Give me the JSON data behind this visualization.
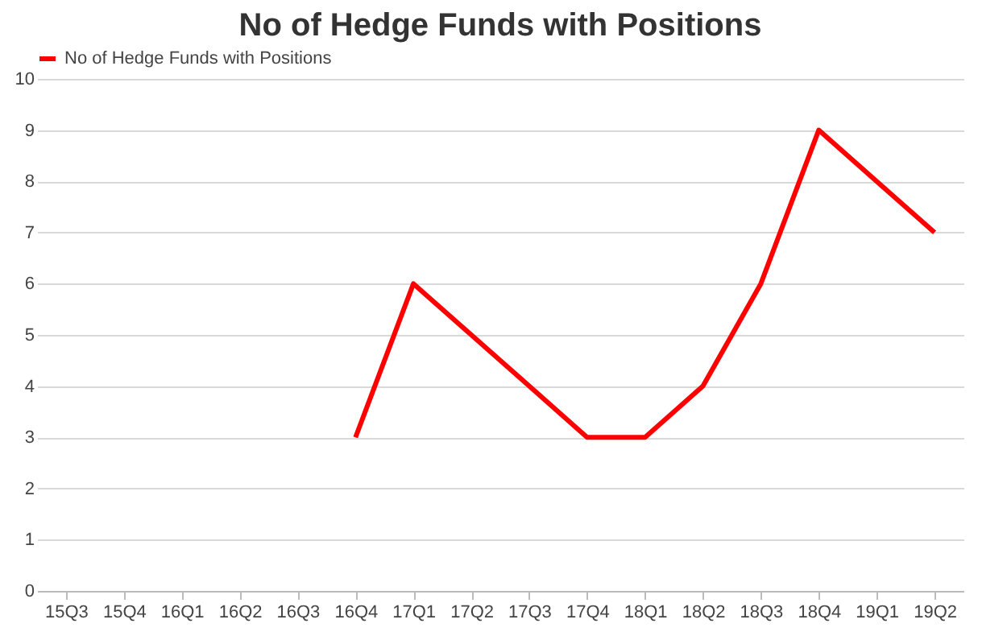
{
  "chart_data": {
    "type": "line",
    "title": "No of Hedge Funds with Positions",
    "categories": [
      "15Q3",
      "15Q4",
      "16Q1",
      "16Q2",
      "16Q3",
      "16Q4",
      "17Q1",
      "17Q2",
      "17Q3",
      "17Q4",
      "18Q1",
      "18Q2",
      "18Q3",
      "18Q4",
      "19Q1",
      "19Q2"
    ],
    "series": [
      {
        "name": "No of Hedge Funds with Positions",
        "color": "#ff0000",
        "values": [
          null,
          null,
          null,
          null,
          null,
          3,
          6,
          5,
          4,
          3,
          3,
          4,
          6,
          9,
          8,
          7
        ]
      }
    ],
    "ylim": [
      0,
      10
    ],
    "yticks": [
      0,
      1,
      2,
      3,
      4,
      5,
      6,
      7,
      8,
      9,
      10
    ],
    "grid": "y",
    "legend": "top",
    "marker": "none",
    "line_style": "solid"
  }
}
